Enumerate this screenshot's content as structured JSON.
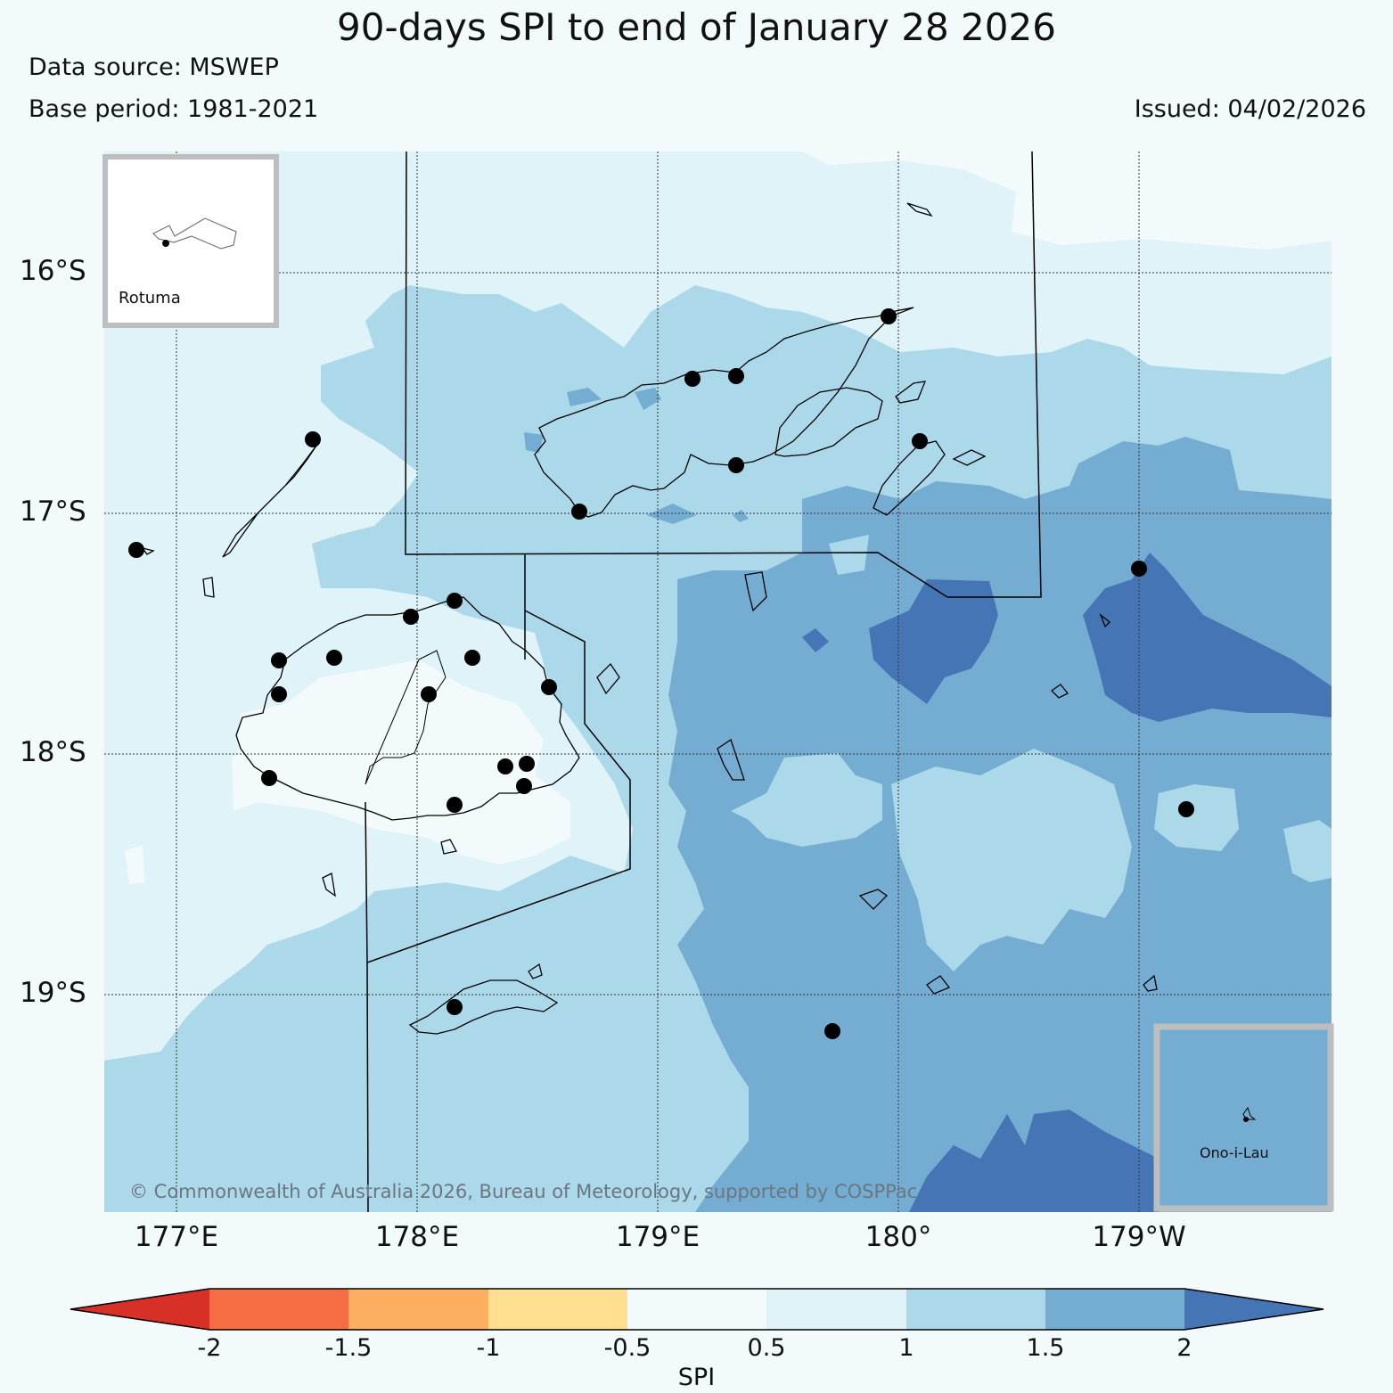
{
  "title": "90-days SPI to end of January 28 2026",
  "data_source": "Data source: MSWEP",
  "base_period": "Base period: 1981-2021",
  "issued": "Issued: 04/02/2026",
  "copyright": "© Commonwealth of Australia 2026, Bureau of Meteorology, supported by COSPPac",
  "axes": {
    "lat_labels": [
      "16°S",
      "17°S",
      "18°S",
      "19°S"
    ],
    "lon_labels": [
      "177°E",
      "178°E",
      "179°E",
      "180°",
      "179°W"
    ]
  },
  "insets": {
    "rotuma": "Rotuma",
    "ono_i_lau": "Ono-i-Lau"
  },
  "colorbar": {
    "label": "SPI",
    "ticks": [
      "-2",
      "-1.5",
      "-1",
      "-0.5",
      "0.5",
      "1",
      "1.5",
      "2"
    ],
    "colors": [
      "#d73027",
      "#f46d43",
      "#fdae61",
      "#fee090",
      "#f3fafc",
      "#e0f3f8",
      "#abd9e9",
      "#74add1",
      "#4575b4"
    ]
  },
  "legend_classes": [
    {
      "range": "0.5 to 1",
      "color": "#e0f3f8"
    },
    {
      "range": "1 to 1.5",
      "color": "#abd9e9"
    },
    {
      "range": "1.5 to 2",
      "color": "#74add1"
    },
    {
      "range": "> 2",
      "color": "#4575b4"
    }
  ],
  "colors": {
    "background": "#f3fafc",
    "inset_border": "#bebebe"
  }
}
